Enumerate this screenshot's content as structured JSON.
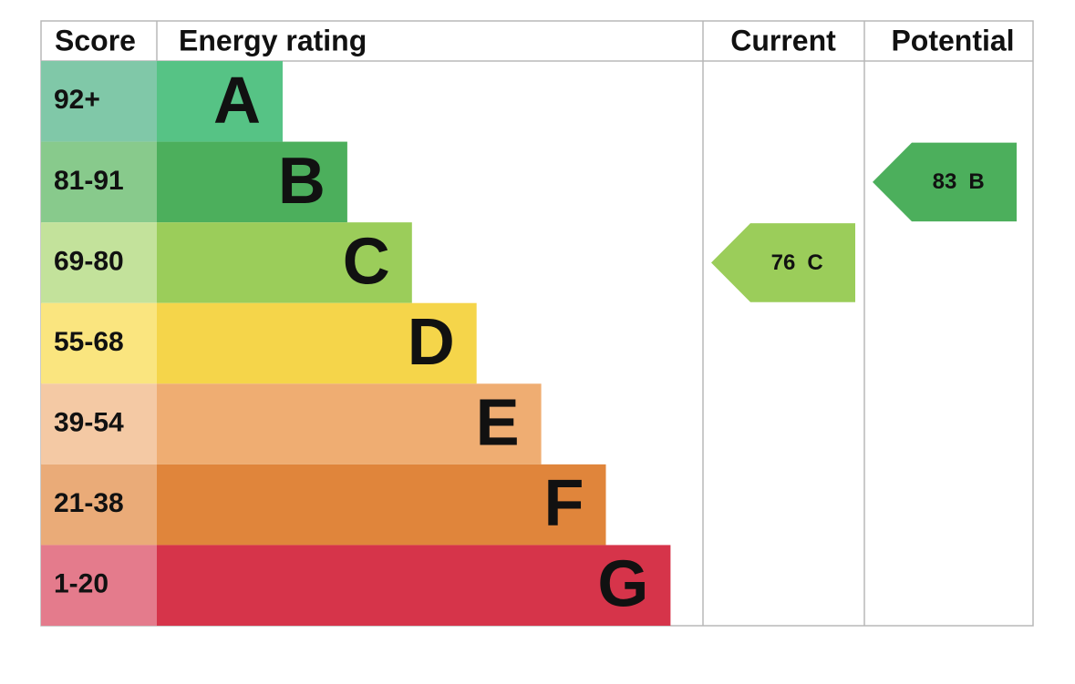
{
  "header": {
    "score": "Score",
    "rating": "Energy rating",
    "current": "Current",
    "potential": "Potential"
  },
  "bands": [
    {
      "score": "92+",
      "letter": "A",
      "color": "#56c385",
      "score_color": "#80c8a8"
    },
    {
      "score": "81-91",
      "letter": "B",
      "color": "#4caf5c",
      "score_color": "#88ca8c"
    },
    {
      "score": "69-80",
      "letter": "C",
      "color": "#9bcd5a",
      "score_color": "#c3e29b"
    },
    {
      "score": "55-68",
      "letter": "D",
      "color": "#f5d54a",
      "score_color": "#fae57f"
    },
    {
      "score": "39-54",
      "letter": "E",
      "color": "#efad72",
      "score_color": "#f4c9a4"
    },
    {
      "score": "21-38",
      "letter": "F",
      "color": "#e0853b",
      "score_color": "#eaab78"
    },
    {
      "score": "1-20",
      "letter": "G",
      "color": "#d6344a",
      "score_color": "#e47b8c"
    }
  ],
  "current": {
    "value": 76,
    "letter": "C"
  },
  "potential": {
    "value": 83,
    "letter": "B"
  }
}
